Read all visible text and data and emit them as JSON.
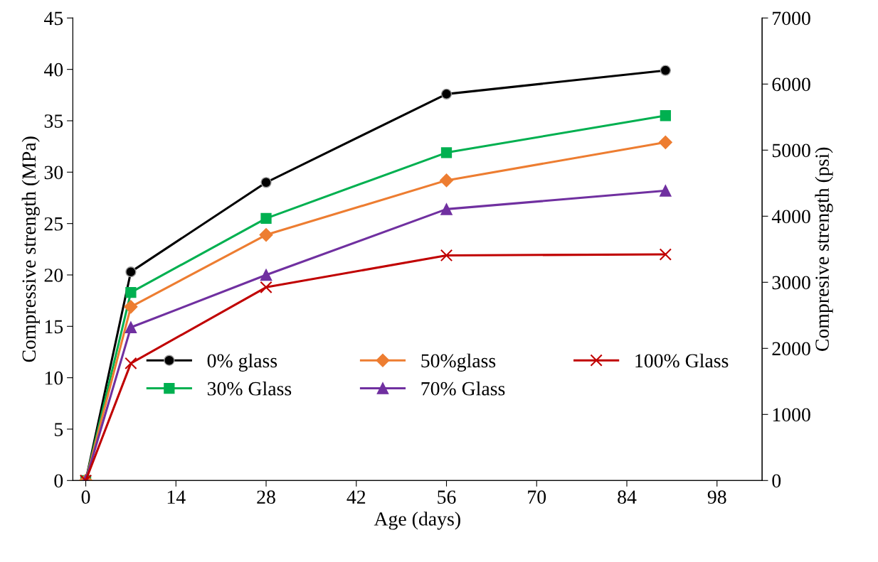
{
  "chart_data": {
    "type": "line",
    "xlabel": "Age (days)",
    "ylabel": "Compressive strength (MPa)",
    "y2label": "Compresive strength (psi)",
    "x": [
      0,
      7,
      28,
      56,
      90
    ],
    "series": [
      {
        "name": "0% glass",
        "color": "#000000",
        "marker": "circle",
        "values": [
          0,
          20.3,
          29.0,
          37.6,
          39.9
        ]
      },
      {
        "name": "30% Glass",
        "color": "#00b050",
        "marker": "square",
        "values": [
          0,
          18.3,
          25.5,
          31.9,
          35.5
        ]
      },
      {
        "name": "50%glass",
        "color": "#ed7d31",
        "marker": "diamond",
        "values": [
          0,
          16.9,
          23.9,
          29.2,
          32.9
        ]
      },
      {
        "name": "70% Glass",
        "color": "#7030a0",
        "marker": "triangle",
        "values": [
          0,
          14.9,
          20.0,
          26.4,
          28.2
        ]
      },
      {
        "name": "100% Glass",
        "color": "#c00000",
        "marker": "cross",
        "values": [
          0,
          11.4,
          18.8,
          21.9,
          22.0
        ]
      }
    ],
    "xlim": [
      -2,
      105
    ],
    "xticks": [
      0,
      14,
      28,
      42,
      56,
      70,
      84,
      98
    ],
    "ylim": [
      0,
      45
    ],
    "yticks": [
      0,
      5,
      10,
      15,
      20,
      25,
      30,
      35,
      40,
      45
    ],
    "y2lim": [
      0,
      7000
    ],
    "y2ticks": [
      0,
      1000,
      2000,
      3000,
      4000,
      5000,
      6000,
      7000
    ],
    "grid": false,
    "legend": "bottom",
    "line_style": "solid"
  }
}
